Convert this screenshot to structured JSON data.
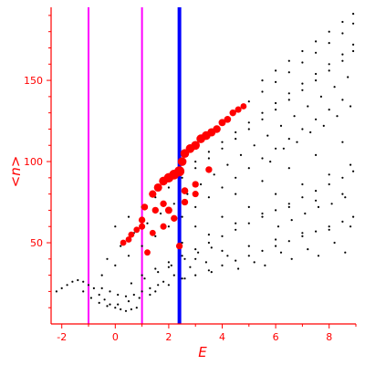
{
  "chart_data": {
    "type": "scatter",
    "xlabel": "E",
    "ylabel": "<n>",
    "xlim": [
      -2.4,
      9.0
    ],
    "ylim": [
      0,
      195
    ],
    "x_ticks": [
      -2,
      0,
      2,
      4,
      6,
      8
    ],
    "y_ticks": [
      50,
      100,
      150
    ],
    "grid": false,
    "colors": {
      "axis": "#ff0000",
      "points": "#000000",
      "highlight": "#ff0000",
      "vline_magenta": "#ff00ff",
      "vline_blue": "#0000ff"
    },
    "vlines": [
      {
        "x": -1.0,
        "color": "#ff00ff"
      },
      {
        "x": 1.0,
        "color": "#ff00ff"
      },
      {
        "x": 2.4,
        "color": "#0000ff"
      }
    ],
    "series": [
      {
        "role": "background",
        "color": "#000000",
        "points": [
          [
            -2.2,
            20
          ],
          [
            -2.0,
            22
          ],
          [
            -1.8,
            24
          ],
          [
            -1.6,
            26
          ],
          [
            -1.4,
            27
          ],
          [
            -1.2,
            26
          ],
          [
            -1.0,
            24
          ],
          [
            -0.8,
            22
          ],
          [
            -0.6,
            18
          ],
          [
            -0.4,
            15
          ],
          [
            -0.2,
            12
          ],
          [
            0.0,
            10
          ],
          [
            0.2,
            9
          ],
          [
            0.4,
            8
          ],
          [
            0.6,
            9
          ],
          [
            0.8,
            10
          ],
          [
            -1.2,
            20
          ],
          [
            -0.9,
            16
          ],
          [
            -0.6,
            13
          ],
          [
            -0.3,
            11
          ],
          [
            0.1,
            12
          ],
          [
            0.5,
            14
          ],
          [
            0.9,
            16
          ],
          [
            1.3,
            18
          ],
          [
            -0.5,
            22
          ],
          [
            -0.2,
            20
          ],
          [
            0.1,
            18
          ],
          [
            0.4,
            17
          ],
          [
            0.7,
            18
          ],
          [
            1.0,
            20
          ],
          [
            1.3,
            22
          ],
          [
            1.6,
            24
          ],
          [
            -0.5,
            30
          ],
          [
            0.0,
            36
          ],
          [
            0.5,
            42
          ],
          [
            1.0,
            48
          ],
          [
            1.5,
            54
          ],
          [
            2.0,
            60
          ],
          [
            2.5,
            66
          ],
          [
            3.0,
            72
          ],
          [
            3.5,
            78
          ],
          [
            4.0,
            84
          ],
          [
            4.5,
            90
          ],
          [
            5.0,
            96
          ],
          [
            5.5,
            102
          ],
          [
            6.0,
            108
          ],
          [
            6.5,
            114
          ],
          [
            7.0,
            120
          ],
          [
            7.5,
            126
          ],
          [
            8.0,
            132
          ],
          [
            8.5,
            138
          ],
          [
            -0.3,
            40
          ],
          [
            0.2,
            48
          ],
          [
            0.7,
            56
          ],
          [
            1.2,
            62
          ],
          [
            1.7,
            68
          ],
          [
            2.2,
            74
          ],
          [
            2.7,
            80
          ],
          [
            3.2,
            86
          ],
          [
            3.7,
            92
          ],
          [
            4.2,
            98
          ],
          [
            4.7,
            104
          ],
          [
            5.2,
            110
          ],
          [
            5.7,
            116
          ],
          [
            6.2,
            122
          ],
          [
            6.7,
            128
          ],
          [
            7.2,
            134
          ],
          [
            7.7,
            140
          ],
          [
            8.2,
            146
          ],
          [
            8.7,
            152
          ],
          [
            0.0,
            60
          ],
          [
            0.5,
            66
          ],
          [
            1.0,
            72
          ],
          [
            1.5,
            78
          ],
          [
            2.0,
            84
          ],
          [
            2.5,
            90
          ],
          [
            3.0,
            96
          ],
          [
            3.5,
            102
          ],
          [
            4.0,
            108
          ],
          [
            4.5,
            114
          ],
          [
            5.0,
            120
          ],
          [
            5.5,
            126
          ],
          [
            6.0,
            132
          ],
          [
            6.5,
            138
          ],
          [
            7.0,
            144
          ],
          [
            7.5,
            150
          ],
          [
            8.0,
            156
          ],
          [
            8.5,
            162
          ],
          [
            8.9,
            168
          ],
          [
            3.0,
            100
          ],
          [
            3.5,
            106
          ],
          [
            4.0,
            112
          ],
          [
            4.5,
            118
          ],
          [
            5.0,
            124
          ],
          [
            5.5,
            130
          ],
          [
            6.0,
            136
          ],
          [
            6.5,
            142
          ],
          [
            7.0,
            148
          ],
          [
            7.5,
            154
          ],
          [
            8.0,
            160
          ],
          [
            8.5,
            166
          ],
          [
            8.9,
            172
          ],
          [
            4.0,
            125
          ],
          [
            4.5,
            131
          ],
          [
            5.0,
            137
          ],
          [
            5.5,
            143
          ],
          [
            6.0,
            149
          ],
          [
            6.5,
            155
          ],
          [
            7.0,
            161
          ],
          [
            7.5,
            167
          ],
          [
            8.0,
            173
          ],
          [
            8.5,
            179
          ],
          [
            8.9,
            185
          ],
          [
            5.5,
            150
          ],
          [
            6.0,
            156
          ],
          [
            6.5,
            162
          ],
          [
            7.0,
            168
          ],
          [
            7.5,
            174
          ],
          [
            8.0,
            180
          ],
          [
            8.5,
            186
          ],
          [
            8.9,
            191
          ],
          [
            1.0,
            30
          ],
          [
            1.5,
            34
          ],
          [
            2.0,
            38
          ],
          [
            2.5,
            42
          ],
          [
            3.0,
            46
          ],
          [
            3.5,
            50
          ],
          [
            4.0,
            54
          ],
          [
            4.5,
            58
          ],
          [
            5.0,
            62
          ],
          [
            5.5,
            66
          ],
          [
            6.0,
            70
          ],
          [
            6.5,
            74
          ],
          [
            7.0,
            78
          ],
          [
            7.5,
            82
          ],
          [
            8.0,
            86
          ],
          [
            8.5,
            90
          ],
          [
            8.9,
            94
          ],
          [
            1.5,
            20
          ],
          [
            2.0,
            24
          ],
          [
            2.5,
            28
          ],
          [
            3.0,
            30
          ],
          [
            3.5,
            33
          ],
          [
            4.0,
            36
          ],
          [
            4.5,
            39
          ],
          [
            5.0,
            42
          ],
          [
            5.5,
            45
          ],
          [
            6.0,
            48
          ],
          [
            6.5,
            51
          ],
          [
            7.0,
            54
          ],
          [
            7.5,
            57
          ],
          [
            8.0,
            60
          ],
          [
            8.5,
            63
          ],
          [
            8.9,
            66
          ],
          [
            2.0,
            35
          ],
          [
            3.0,
            40
          ],
          [
            4.0,
            45
          ],
          [
            5.0,
            48
          ],
          [
            6.0,
            52
          ],
          [
            7.0,
            56
          ],
          [
            8.0,
            58
          ],
          [
            8.8,
            60
          ],
          [
            2.5,
            50
          ],
          [
            3.5,
            55
          ],
          [
            4.5,
            62
          ],
          [
            5.5,
            68
          ],
          [
            6.5,
            72
          ],
          [
            7.5,
            76
          ],
          [
            8.5,
            80
          ],
          [
            3.0,
            60
          ],
          [
            4.0,
            66
          ],
          [
            5.0,
            72
          ],
          [
            6.0,
            80
          ],
          [
            7.0,
            86
          ],
          [
            8.0,
            92
          ],
          [
            8.8,
            98
          ],
          [
            4.5,
            80
          ],
          [
            5.5,
            88
          ],
          [
            6.5,
            96
          ],
          [
            7.5,
            104
          ],
          [
            8.5,
            112
          ],
          [
            2.2,
            30
          ],
          [
            2.8,
            35
          ],
          [
            3.4,
            38
          ],
          [
            4.2,
            42
          ],
          [
            5.2,
            38
          ],
          [
            6.2,
            44
          ],
          [
            7.2,
            46
          ],
          [
            8.2,
            50
          ],
          [
            1.8,
            26
          ],
          [
            2.6,
            28
          ],
          [
            3.6,
            32
          ],
          [
            4.6,
            34
          ],
          [
            5.6,
            36
          ],
          [
            6.6,
            40
          ],
          [
            7.6,
            42
          ],
          [
            8.6,
            44
          ],
          [
            0.6,
            25
          ],
          [
            1.1,
            28
          ],
          [
            1.6,
            32
          ],
          [
            2.1,
            36
          ],
          [
            2.6,
            40
          ],
          [
            3.1,
            44
          ],
          [
            3.6,
            47
          ],
          [
            5.8,
            100
          ],
          [
            6.3,
            108
          ],
          [
            6.8,
            112
          ],
          [
            7.3,
            118
          ],
          [
            7.8,
            122
          ],
          [
            8.3,
            128
          ],
          [
            8.8,
            134
          ],
          [
            6.1,
            60
          ],
          [
            6.6,
            64
          ],
          [
            7.1,
            68
          ],
          [
            7.6,
            72
          ],
          [
            8.1,
            74
          ],
          [
            8.6,
            78
          ]
        ]
      },
      {
        "role": "highlight",
        "color": "#ff0000",
        "points": [
          [
            0.3,
            50,
            1
          ],
          [
            0.6,
            55,
            1
          ],
          [
            0.8,
            58,
            1
          ],
          [
            1.0,
            64,
            1.2
          ],
          [
            1.1,
            72,
            1.2
          ],
          [
            1.4,
            80,
            1.5
          ],
          [
            1.6,
            84,
            1.8
          ],
          [
            1.8,
            88,
            2
          ],
          [
            2.0,
            90,
            2.3
          ],
          [
            2.2,
            92,
            2.4
          ],
          [
            2.4,
            94,
            2.5
          ],
          [
            2.5,
            100,
            2
          ],
          [
            2.6,
            105,
            2
          ],
          [
            2.8,
            108,
            2
          ],
          [
            3.0,
            110,
            2
          ],
          [
            3.2,
            114,
            2
          ],
          [
            3.4,
            116,
            2
          ],
          [
            3.6,
            118,
            1.8
          ],
          [
            3.8,
            120,
            1.6
          ],
          [
            4.0,
            124,
            1.4
          ],
          [
            4.2,
            126,
            1.3
          ],
          [
            4.4,
            130,
            1.2
          ],
          [
            4.6,
            132,
            1.1
          ],
          [
            4.8,
            134,
            1
          ],
          [
            1.5,
            70,
            1.2
          ],
          [
            1.8,
            74,
            1.2
          ],
          [
            2.6,
            82,
            1.3
          ],
          [
            3.0,
            86,
            1.2
          ],
          [
            1.0,
            60,
            1.1
          ],
          [
            0.5,
            52,
            1
          ],
          [
            2.0,
            70,
            1.4
          ],
          [
            1.2,
            44,
            1
          ],
          [
            2.4,
            48,
            1.2
          ],
          [
            1.4,
            56,
            1
          ],
          [
            1.8,
            60,
            1.1
          ],
          [
            2.2,
            65,
            1.2
          ],
          [
            2.6,
            75,
            1.2
          ],
          [
            3.0,
            80,
            1.1
          ],
          [
            3.5,
            95,
            1.2
          ]
        ]
      }
    ]
  }
}
